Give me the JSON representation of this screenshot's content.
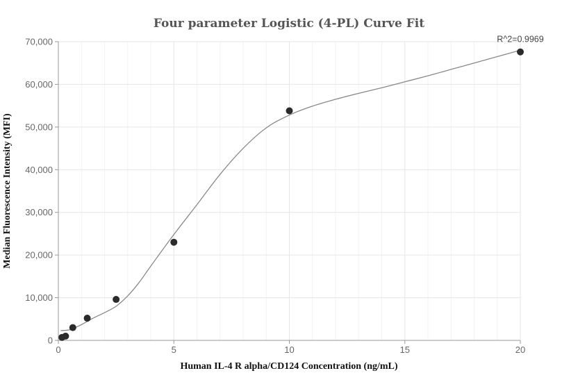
{
  "chart_data": {
    "type": "scatter",
    "title": "Four parameter Logistic (4-PL) Curve Fit",
    "xlabel": "Human IL-4 R alpha/CD124 Concentration (ng/mL)",
    "ylabel": "Median Fluorescence Intensity (MFI)",
    "xlim": [
      0,
      20
    ],
    "ylim": [
      0,
      70000
    ],
    "grid": true,
    "x_ticks": [
      {
        "value": 0,
        "label": "0"
      },
      {
        "value": 5,
        "label": "5"
      },
      {
        "value": 10,
        "label": "10"
      },
      {
        "value": 15,
        "label": "15"
      },
      {
        "value": 20,
        "label": "20"
      }
    ],
    "y_ticks": [
      {
        "value": 0,
        "label": "0"
      },
      {
        "value": 10000,
        "label": "10,000"
      },
      {
        "value": 20000,
        "label": "20,000"
      },
      {
        "value": 30000,
        "label": "30,000"
      },
      {
        "value": 40000,
        "label": "40,000"
      },
      {
        "value": 50000,
        "label": "50,000"
      },
      {
        "value": 60000,
        "label": "60,000"
      },
      {
        "value": 70000,
        "label": "70,000"
      }
    ],
    "points": [
      {
        "x": 0.156,
        "y": 700
      },
      {
        "x": 0.3125,
        "y": 1000
      },
      {
        "x": 0.625,
        "y": 3000
      },
      {
        "x": 1.25,
        "y": 5200
      },
      {
        "x": 2.5,
        "y": 9600
      },
      {
        "x": 5,
        "y": 23000
      },
      {
        "x": 10,
        "y": 53800
      },
      {
        "x": 20,
        "y": 67600
      }
    ],
    "fit_curve": {
      "model": "4PL",
      "x": [
        0.1,
        0.5,
        1,
        1.5,
        2,
        2.5,
        3,
        3.5,
        4,
        5,
        6,
        7,
        8,
        9,
        10,
        11,
        12,
        13,
        14,
        15,
        16,
        17,
        18,
        19,
        20
      ],
      "y": [
        2300,
        2500,
        3700,
        5200,
        6500,
        8000,
        10400,
        13600,
        17400,
        24800,
        31800,
        38900,
        45000,
        49800,
        52800,
        54900,
        56500,
        57900,
        59200,
        60600,
        62000,
        63500,
        65000,
        66500,
        68000
      ]
    },
    "annotation": {
      "text": "R^2=0.9969",
      "x": 20,
      "y": 68000
    }
  }
}
